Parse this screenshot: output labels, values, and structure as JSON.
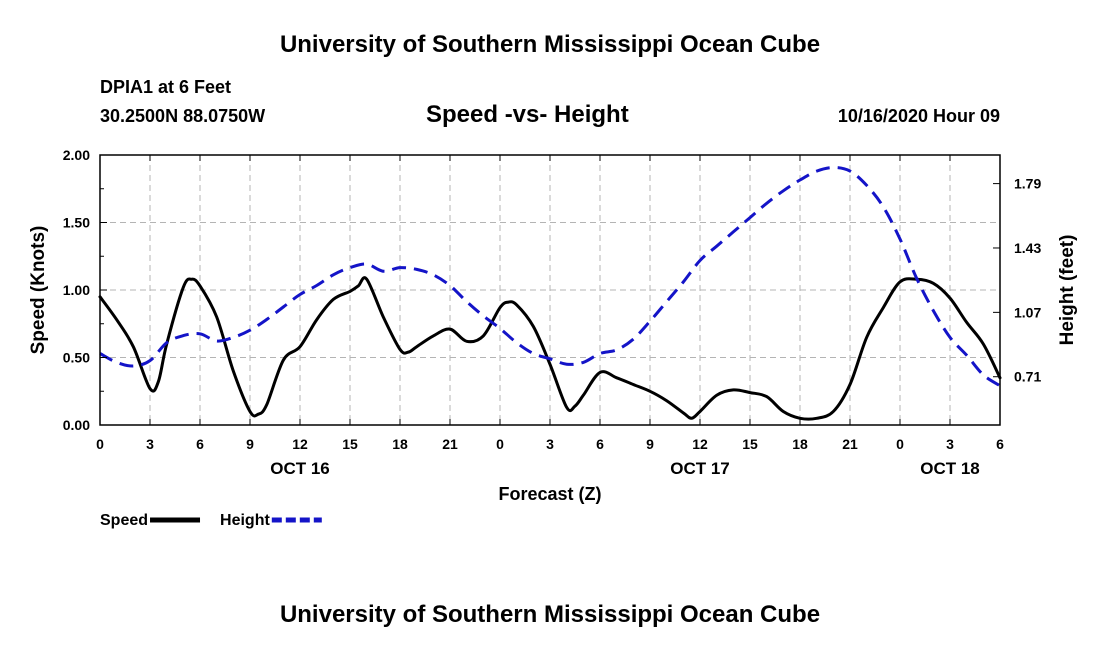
{
  "page": {
    "title_top": "University of Southern Mississippi Ocean Cube",
    "title_bottom": "University of Southern Mississippi Ocean Cube",
    "station": "DPIA1 at 6 Feet",
    "coords": "30.2500N 88.0750W",
    "plot_title": "Speed -vs- Height",
    "datetime": "10/16/2020 Hour 09"
  },
  "chart_data": {
    "type": "line",
    "title": "Speed -vs- Height",
    "xlabel": "Forecast (Z)",
    "ylabel_left": "Speed (Knots)",
    "ylabel_right": "Height (feet)",
    "x_range_hours": [
      0,
      54
    ],
    "x_tick_hours": [
      0,
      3,
      6,
      9,
      12,
      15,
      18,
      21,
      24,
      27,
      30,
      33,
      36,
      39,
      42,
      45,
      48,
      51,
      54
    ],
    "x_tick_labels": [
      "0",
      "3",
      "6",
      "9",
      "12",
      "15",
      "18",
      "21",
      "0",
      "3",
      "6",
      "9",
      "12",
      "15",
      "18",
      "21",
      "0",
      "3",
      "6"
    ],
    "x_date_labels": [
      {
        "hour": 12,
        "label": "OCT 16"
      },
      {
        "hour": 36,
        "label": "OCT 17"
      },
      {
        "hour": 51,
        "label": "OCT 18"
      }
    ],
    "ylim_left": [
      0,
      2
    ],
    "y_ticks_left": [
      0,
      0.5,
      1,
      1.5,
      2
    ],
    "y_tick_labels_left": [
      "0.00",
      "0.50",
      "1.00",
      "1.50",
      "2.00"
    ],
    "ylim_right": [
      0.44,
      1.95
    ],
    "y_ticks_right": [
      0.71,
      1.07,
      1.43,
      1.79
    ],
    "y_tick_labels_right": [
      "0.71",
      "1.07",
      "1.43",
      "1.79"
    ],
    "grid": true,
    "series": [
      {
        "name": "Speed",
        "axis": "left",
        "color": "#000000",
        "dash": "solid",
        "x": [
          0,
          1,
          2,
          3,
          3.5,
          4,
          5,
          5.5,
          6,
          7,
          8,
          9,
          9.5,
          10,
          11,
          12,
          13,
          14,
          15,
          15.5,
          16,
          17,
          18,
          18.5,
          19,
          20,
          21,
          22,
          23,
          24,
          24.5,
          25,
          26,
          27,
          28,
          28.5,
          29,
          30,
          31,
          32,
          33,
          34,
          35,
          35.5,
          36,
          37,
          38,
          39,
          40,
          41,
          42,
          43,
          44,
          45,
          46,
          47,
          48,
          49,
          50,
          51,
          52,
          53,
          54
        ],
        "y": [
          0.95,
          0.78,
          0.58,
          0.27,
          0.32,
          0.6,
          1.02,
          1.08,
          1.03,
          0.8,
          0.4,
          0.1,
          0.08,
          0.15,
          0.48,
          0.58,
          0.78,
          0.93,
          0.99,
          1.03,
          1.08,
          0.8,
          0.56,
          0.54,
          0.58,
          0.66,
          0.71,
          0.62,
          0.66,
          0.87,
          0.91,
          0.89,
          0.73,
          0.45,
          0.13,
          0.14,
          0.22,
          0.39,
          0.35,
          0.3,
          0.25,
          0.18,
          0.09,
          0.05,
          0.1,
          0.22,
          0.26,
          0.24,
          0.21,
          0.1,
          0.05,
          0.05,
          0.1,
          0.3,
          0.65,
          0.87,
          1.06,
          1.08,
          1.05,
          0.94,
          0.76,
          0.6,
          0.35
        ]
      },
      {
        "name": "Height",
        "axis": "right",
        "color": "#1414c8",
        "dash": "dashed",
        "x": [
          0,
          1,
          2,
          3,
          4,
          5,
          6,
          7,
          8,
          9,
          10,
          11,
          12,
          13,
          14,
          15,
          16,
          17,
          18,
          19,
          20,
          21,
          22,
          23,
          24,
          25,
          26,
          27,
          28,
          29,
          30,
          31,
          32,
          33,
          34,
          35,
          36,
          37,
          38,
          39,
          40,
          41,
          42,
          43,
          44,
          45,
          46,
          47,
          48,
          49,
          50,
          51,
          52,
          53,
          54
        ],
        "y": [
          0.84,
          0.79,
          0.77,
          0.8,
          0.9,
          0.94,
          0.95,
          0.91,
          0.93,
          0.97,
          1.03,
          1.1,
          1.17,
          1.22,
          1.28,
          1.32,
          1.34,
          1.3,
          1.32,
          1.31,
          1.28,
          1.22,
          1.13,
          1.05,
          0.98,
          0.9,
          0.84,
          0.81,
          0.78,
          0.79,
          0.84,
          0.86,
          0.92,
          1.02,
          1.13,
          1.24,
          1.36,
          1.44,
          1.52,
          1.6,
          1.68,
          1.75,
          1.81,
          1.86,
          1.88,
          1.86,
          1.78,
          1.66,
          1.48,
          1.26,
          1.08,
          0.93,
          0.83,
          0.72,
          0.66
        ]
      }
    ],
    "legend": [
      {
        "label": "Speed",
        "color": "#000000",
        "dash": "solid"
      },
      {
        "label": "Height",
        "color": "#1414c8",
        "dash": "dashed"
      }
    ]
  }
}
